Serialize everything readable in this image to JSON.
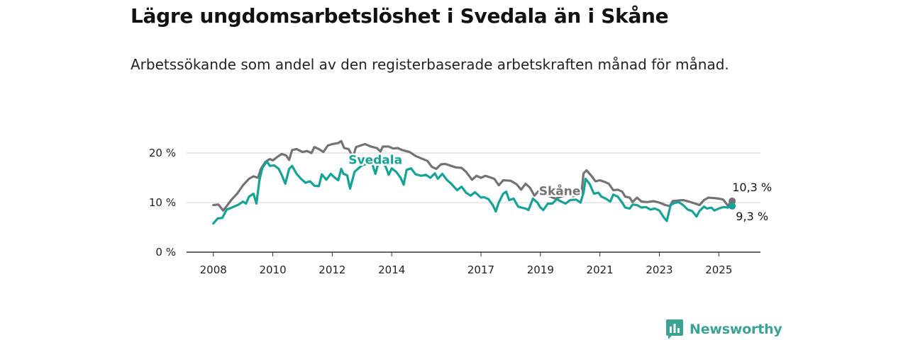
{
  "title": "Lägre ungdomsarbetslöshet i Svedala än i Skåne",
  "subtitle": "Arbetssökande som andel av den registerbaserade arbetskraften månad för månad.",
  "brand": {
    "name": "Newsworthy",
    "color": "#3aa396"
  },
  "chart_data": {
    "type": "line",
    "x_tick_labels": [
      "2008",
      "2010",
      "2012",
      "2014",
      "2017",
      "2019",
      "2021",
      "2023",
      "2025"
    ],
    "x_tick_years": [
      2008,
      2010,
      2012,
      2014,
      2017,
      2019,
      2021,
      2023,
      2025
    ],
    "xlim": [
      2007.1,
      2026.4
    ],
    "ylim": [
      0,
      23
    ],
    "y_ticks": [
      0,
      10,
      20
    ],
    "y_tick_labels": [
      "0 %",
      "10 %",
      "20 %"
    ],
    "grid": true,
    "series": [
      {
        "name": "Skåne",
        "color": "#737373",
        "end_label": "10,3 %",
        "points": [
          [
            2008.0,
            9.5
          ],
          [
            2008.17,
            9.6
          ],
          [
            2008.33,
            8.4
          ],
          [
            2008.45,
            9.3
          ],
          [
            2008.6,
            10.5
          ],
          [
            2008.8,
            11.8
          ],
          [
            2009.0,
            13.5
          ],
          [
            2009.2,
            14.8
          ],
          [
            2009.35,
            15.3
          ],
          [
            2009.5,
            15.0
          ],
          [
            2009.6,
            16.8
          ],
          [
            2009.75,
            18.2
          ],
          [
            2009.9,
            18.8
          ],
          [
            2010.0,
            18.5
          ],
          [
            2010.15,
            19.2
          ],
          [
            2010.3,
            19.8
          ],
          [
            2010.45,
            19.5
          ],
          [
            2010.55,
            18.6
          ],
          [
            2010.65,
            20.6
          ],
          [
            2010.8,
            20.8
          ],
          [
            2011.0,
            20.2
          ],
          [
            2011.15,
            20.4
          ],
          [
            2011.3,
            20.0
          ],
          [
            2011.4,
            21.2
          ],
          [
            2011.55,
            20.8
          ],
          [
            2011.7,
            20.2
          ],
          [
            2011.85,
            21.5
          ],
          [
            2012.0,
            21.8
          ],
          [
            2012.2,
            22.0
          ],
          [
            2012.3,
            22.4
          ],
          [
            2012.4,
            21.0
          ],
          [
            2012.55,
            20.8
          ],
          [
            2012.7,
            19.2
          ],
          [
            2012.8,
            21.2
          ],
          [
            2012.95,
            21.5
          ],
          [
            2013.1,
            21.8
          ],
          [
            2013.3,
            21.3
          ],
          [
            2013.5,
            21.0
          ],
          [
            2013.62,
            20.3
          ],
          [
            2013.7,
            21.3
          ],
          [
            2013.9,
            21.3
          ],
          [
            2014.05,
            20.9
          ],
          [
            2014.2,
            21.0
          ],
          [
            2014.35,
            20.6
          ],
          [
            2014.6,
            20.2
          ],
          [
            2014.8,
            19.4
          ],
          [
            2015.0,
            18.9
          ],
          [
            2015.2,
            18.4
          ],
          [
            2015.35,
            17.2
          ],
          [
            2015.5,
            16.8
          ],
          [
            2015.65,
            17.7
          ],
          [
            2015.8,
            17.8
          ],
          [
            2016.0,
            17.4
          ],
          [
            2016.15,
            17.1
          ],
          [
            2016.35,
            17.0
          ],
          [
            2016.5,
            16.2
          ],
          [
            2016.7,
            14.6
          ],
          [
            2016.85,
            15.4
          ],
          [
            2017.0,
            15.0
          ],
          [
            2017.15,
            15.4
          ],
          [
            2017.3,
            15.1
          ],
          [
            2017.45,
            14.8
          ],
          [
            2017.6,
            13.5
          ],
          [
            2017.75,
            14.5
          ],
          [
            2018.0,
            14.4
          ],
          [
            2018.2,
            13.7
          ],
          [
            2018.35,
            12.6
          ],
          [
            2018.5,
            13.8
          ],
          [
            2018.65,
            13.0
          ],
          [
            2018.8,
            11.4
          ],
          [
            2018.95,
            12.4
          ],
          [
            2019.1,
            12.0
          ],
          [
            2019.3,
            11.3
          ],
          [
            2019.5,
            10.8
          ],
          [
            2019.7,
            11.2
          ],
          [
            2019.9,
            11.6
          ],
          [
            2020.1,
            11.3
          ],
          [
            2020.25,
            11.6
          ],
          [
            2020.38,
            12.0
          ],
          [
            2020.45,
            15.9
          ],
          [
            2020.55,
            16.5
          ],
          [
            2020.7,
            15.5
          ],
          [
            2020.85,
            14.3
          ],
          [
            2021.0,
            14.5
          ],
          [
            2021.15,
            14.2
          ],
          [
            2021.3,
            13.8
          ],
          [
            2021.45,
            12.5
          ],
          [
            2021.6,
            12.6
          ],
          [
            2021.75,
            12.2
          ],
          [
            2021.85,
            11.2
          ],
          [
            2022.0,
            11.0
          ],
          [
            2022.1,
            10.1
          ],
          [
            2022.25,
            11.0
          ],
          [
            2022.4,
            10.2
          ],
          [
            2022.6,
            10.1
          ],
          [
            2022.8,
            10.3
          ],
          [
            2023.0,
            10.0
          ],
          [
            2023.2,
            9.5
          ],
          [
            2023.35,
            9.3
          ],
          [
            2023.45,
            10.3
          ],
          [
            2023.6,
            10.4
          ],
          [
            2023.8,
            10.5
          ],
          [
            2024.0,
            10.2
          ],
          [
            2024.2,
            9.8
          ],
          [
            2024.35,
            9.5
          ],
          [
            2024.5,
            10.5
          ],
          [
            2024.65,
            11.0
          ],
          [
            2024.85,
            10.9
          ],
          [
            2025.0,
            10.8
          ],
          [
            2025.15,
            10.6
          ],
          [
            2025.3,
            9.4
          ],
          [
            2025.45,
            10.3
          ]
        ]
      },
      {
        "name": "Svedala",
        "color": "#14a396",
        "end_label": "9,3 %",
        "points": [
          [
            2008.0,
            5.8
          ],
          [
            2008.15,
            6.8
          ],
          [
            2008.3,
            6.9
          ],
          [
            2008.45,
            8.6
          ],
          [
            2008.55,
            8.8
          ],
          [
            2008.7,
            9.2
          ],
          [
            2008.85,
            9.6
          ],
          [
            2009.0,
            10.2
          ],
          [
            2009.1,
            9.8
          ],
          [
            2009.2,
            11.2
          ],
          [
            2009.35,
            11.8
          ],
          [
            2009.45,
            9.8
          ],
          [
            2009.55,
            14.5
          ],
          [
            2009.65,
            17.0
          ],
          [
            2009.8,
            18.3
          ],
          [
            2009.9,
            17.4
          ],
          [
            2010.05,
            17.5
          ],
          [
            2010.2,
            16.8
          ],
          [
            2010.3,
            15.6
          ],
          [
            2010.42,
            13.8
          ],
          [
            2010.55,
            16.8
          ],
          [
            2010.65,
            17.4
          ],
          [
            2010.8,
            15.8
          ],
          [
            2010.95,
            14.8
          ],
          [
            2011.1,
            14.0
          ],
          [
            2011.25,
            14.3
          ],
          [
            2011.4,
            13.4
          ],
          [
            2011.55,
            13.3
          ],
          [
            2011.65,
            15.7
          ],
          [
            2011.8,
            14.6
          ],
          [
            2011.95,
            15.8
          ],
          [
            2012.05,
            15.2
          ],
          [
            2012.2,
            14.5
          ],
          [
            2012.3,
            16.8
          ],
          [
            2012.38,
            15.8
          ],
          [
            2012.5,
            15.5
          ],
          [
            2012.6,
            12.8
          ],
          [
            2012.75,
            16.2
          ],
          [
            2012.9,
            17.0
          ],
          [
            2013.0,
            17.5
          ],
          [
            2013.15,
            17.8
          ],
          [
            2013.3,
            18.6
          ],
          [
            2013.45,
            15.8
          ],
          [
            2013.55,
            18.0
          ],
          [
            2013.65,
            18.4
          ],
          [
            2013.8,
            17.2
          ],
          [
            2013.9,
            15.6
          ],
          [
            2014.0,
            16.9
          ],
          [
            2014.15,
            16.2
          ],
          [
            2014.3,
            15.0
          ],
          [
            2014.4,
            13.6
          ],
          [
            2014.5,
            16.6
          ],
          [
            2014.65,
            16.9
          ],
          [
            2014.8,
            15.7
          ],
          [
            2015.0,
            15.4
          ],
          [
            2015.15,
            15.6
          ],
          [
            2015.3,
            15.0
          ],
          [
            2015.45,
            15.9
          ],
          [
            2015.55,
            14.8
          ],
          [
            2015.7,
            15.8
          ],
          [
            2015.85,
            14.6
          ],
          [
            2016.0,
            13.8
          ],
          [
            2016.2,
            12.5
          ],
          [
            2016.35,
            13.2
          ],
          [
            2016.5,
            12.0
          ],
          [
            2016.65,
            11.4
          ],
          [
            2016.8,
            12.1
          ],
          [
            2017.0,
            11.0
          ],
          [
            2017.1,
            11.1
          ],
          [
            2017.25,
            10.7
          ],
          [
            2017.4,
            9.5
          ],
          [
            2017.5,
            8.2
          ],
          [
            2017.6,
            10.0
          ],
          [
            2017.75,
            11.8
          ],
          [
            2017.85,
            12.2
          ],
          [
            2017.95,
            10.5
          ],
          [
            2018.1,
            10.8
          ],
          [
            2018.25,
            9.2
          ],
          [
            2018.35,
            9.0
          ],
          [
            2018.5,
            8.8
          ],
          [
            2018.6,
            8.5
          ],
          [
            2018.75,
            10.8
          ],
          [
            2018.9,
            10.0
          ],
          [
            2019.0,
            9.0
          ],
          [
            2019.1,
            8.5
          ],
          [
            2019.25,
            9.8
          ],
          [
            2019.4,
            9.8
          ],
          [
            2019.55,
            10.7
          ],
          [
            2019.7,
            10.2
          ],
          [
            2019.85,
            9.8
          ],
          [
            2020.0,
            10.5
          ],
          [
            2020.2,
            10.6
          ],
          [
            2020.35,
            10.0
          ],
          [
            2020.45,
            12.0
          ],
          [
            2020.52,
            14.8
          ],
          [
            2020.65,
            13.8
          ],
          [
            2020.8,
            11.8
          ],
          [
            2020.95,
            12.0
          ],
          [
            2021.05,
            11.2
          ],
          [
            2021.2,
            10.8
          ],
          [
            2021.35,
            10.2
          ],
          [
            2021.45,
            11.6
          ],
          [
            2021.6,
            11.2
          ],
          [
            2021.75,
            10.0
          ],
          [
            2021.85,
            9.0
          ],
          [
            2022.0,
            8.8
          ],
          [
            2022.1,
            9.6
          ],
          [
            2022.25,
            9.5
          ],
          [
            2022.4,
            9.0
          ],
          [
            2022.55,
            9.1
          ],
          [
            2022.7,
            8.6
          ],
          [
            2022.85,
            8.8
          ],
          [
            2023.0,
            8.4
          ],
          [
            2023.15,
            7.0
          ],
          [
            2023.25,
            6.3
          ],
          [
            2023.38,
            9.5
          ],
          [
            2023.5,
            9.9
          ],
          [
            2023.65,
            10.1
          ],
          [
            2023.8,
            9.5
          ],
          [
            2023.95,
            8.6
          ],
          [
            2024.1,
            8.3
          ],
          [
            2024.25,
            7.2
          ],
          [
            2024.35,
            8.3
          ],
          [
            2024.5,
            9.2
          ],
          [
            2024.6,
            8.8
          ],
          [
            2024.75,
            9.0
          ],
          [
            2024.85,
            8.4
          ],
          [
            2025.0,
            8.8
          ],
          [
            2025.15,
            9.1
          ],
          [
            2025.3,
            9.0
          ],
          [
            2025.45,
            9.3
          ]
        ]
      }
    ]
  }
}
